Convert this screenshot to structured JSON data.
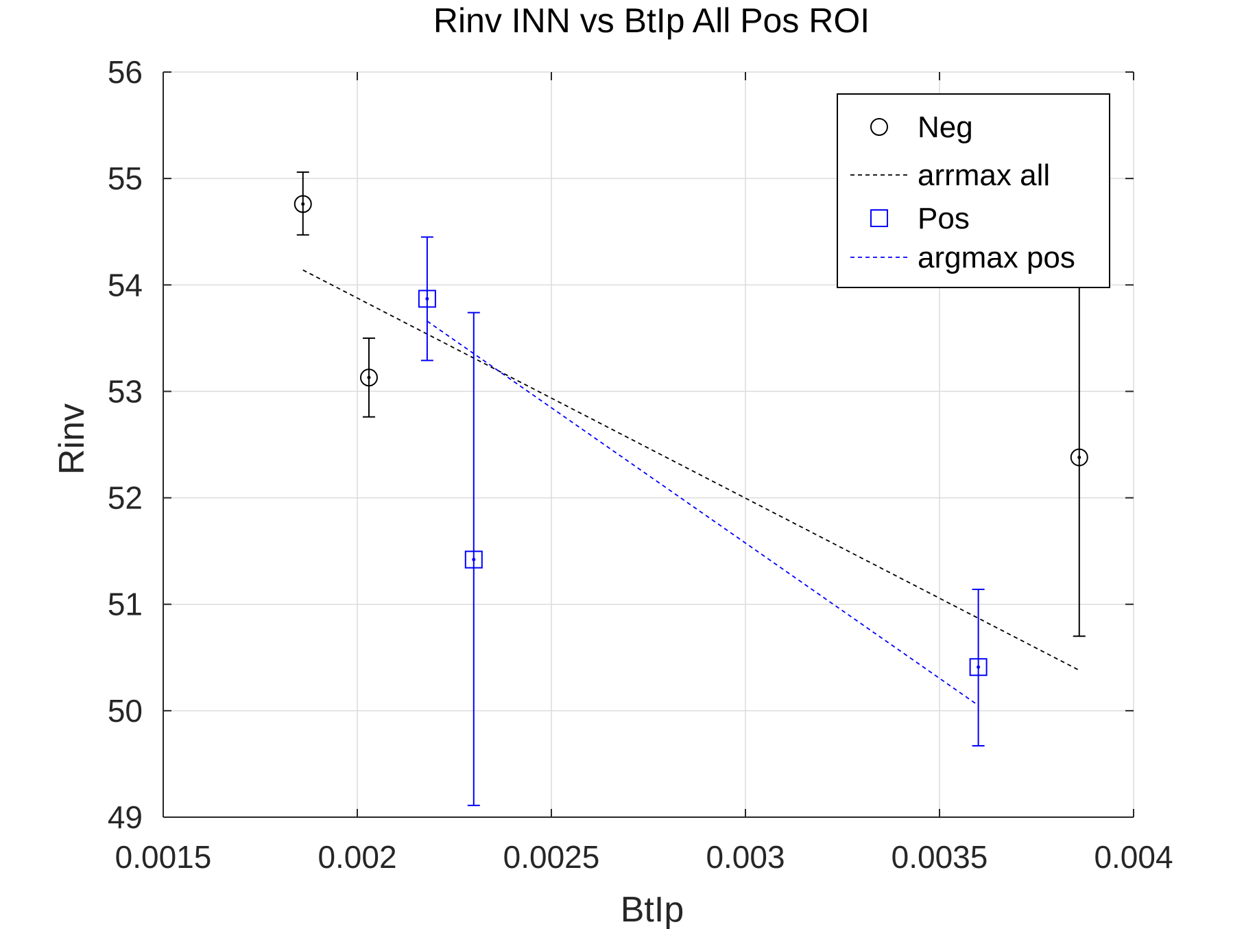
{
  "chart_data": {
    "type": "scatter",
    "title": "Rinv INN vs BtIp All Pos ROI",
    "xlabel": "BtIp",
    "ylabel": "Rinv",
    "xlim": [
      0.0015,
      0.004
    ],
    "ylim": [
      49,
      56
    ],
    "x_ticks": [
      0.0015,
      0.002,
      0.0025,
      0.003,
      0.0035,
      0.004
    ],
    "x_tick_labels": [
      "0.0015",
      "0.002",
      "0.0025",
      "0.003",
      "0.0035",
      "0.004"
    ],
    "y_ticks": [
      49,
      50,
      51,
      52,
      53,
      54,
      55,
      56
    ],
    "y_tick_labels": [
      "49",
      "50",
      "51",
      "52",
      "53",
      "54",
      "55",
      "56"
    ],
    "grid": true,
    "legend_position": "top-right",
    "series": [
      {
        "name": "Neg",
        "kind": "errorbar",
        "marker": "circle",
        "color": "#000000",
        "points": [
          {
            "x": 0.00186,
            "y": 54.76,
            "low": 54.47,
            "high": 55.06
          },
          {
            "x": 0.00203,
            "y": 53.13,
            "low": 52.76,
            "high": 53.5
          },
          {
            "x": 0.00386,
            "y": 52.38,
            "low": 50.7,
            "high": 54.06
          }
        ]
      },
      {
        "name": "arrmax all",
        "kind": "line",
        "dash": "dashed",
        "color": "#000000",
        "points": [
          {
            "x": 0.00186,
            "y": 54.14
          },
          {
            "x": 0.00386,
            "y": 50.38
          }
        ]
      },
      {
        "name": "Pos",
        "kind": "errorbar",
        "marker": "square",
        "color": "#0000ff",
        "points": [
          {
            "x": 0.00218,
            "y": 53.87,
            "low": 53.29,
            "high": 54.45
          },
          {
            "x": 0.0023,
            "y": 51.42,
            "low": 49.11,
            "high": 53.74
          },
          {
            "x": 0.0036,
            "y": 50.41,
            "low": 49.67,
            "high": 51.14
          }
        ]
      },
      {
        "name": "argmax pos",
        "kind": "line",
        "dash": "dashed",
        "color": "#0000ff",
        "points": [
          {
            "x": 0.00218,
            "y": 53.66
          },
          {
            "x": 0.0036,
            "y": 50.05
          }
        ]
      }
    ]
  }
}
